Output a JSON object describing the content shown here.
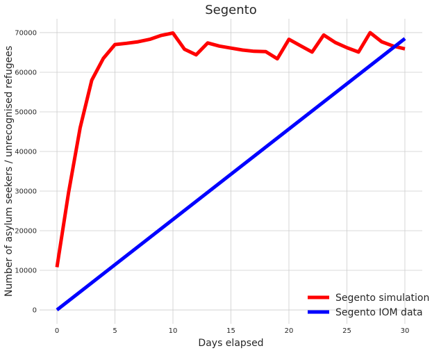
{
  "chart_data": {
    "type": "line",
    "title": "Segento",
    "xlabel": "Days elapsed",
    "ylabel": "Number of asylum seekers / unrecognised refugees",
    "xlim": [
      -1.5,
      31.5
    ],
    "ylim": [
      -3500,
      73500
    ],
    "xticks": [
      0,
      5,
      10,
      15,
      20,
      25,
      30
    ],
    "yticks": [
      0,
      10000,
      20000,
      30000,
      40000,
      50000,
      60000,
      70000
    ],
    "grid": true,
    "legend_position": "lower-right",
    "series": [
      {
        "name": "Segento simulation",
        "color": "#ff0000",
        "x": [
          0,
          1,
          2,
          3,
          4,
          5,
          6,
          7,
          8,
          9,
          10,
          11,
          12,
          13,
          14,
          15,
          16,
          17,
          18,
          19,
          20,
          21,
          22,
          23,
          24,
          25,
          26,
          27,
          28,
          29,
          30
        ],
        "y": [
          10800,
          29600,
          46000,
          58000,
          63500,
          67000,
          67300,
          67700,
          68300,
          69300,
          69900,
          65800,
          64400,
          67400,
          66600,
          66100,
          65600,
          65300,
          65200,
          63400,
          68300,
          66700,
          65100,
          69400,
          67500,
          66200,
          65100,
          70000,
          67700,
          66600,
          65900
        ]
      },
      {
        "name": "Segento IOM data",
        "color": "#0000ff",
        "x": [
          0,
          30
        ],
        "y": [
          0,
          68500
        ]
      }
    ]
  }
}
